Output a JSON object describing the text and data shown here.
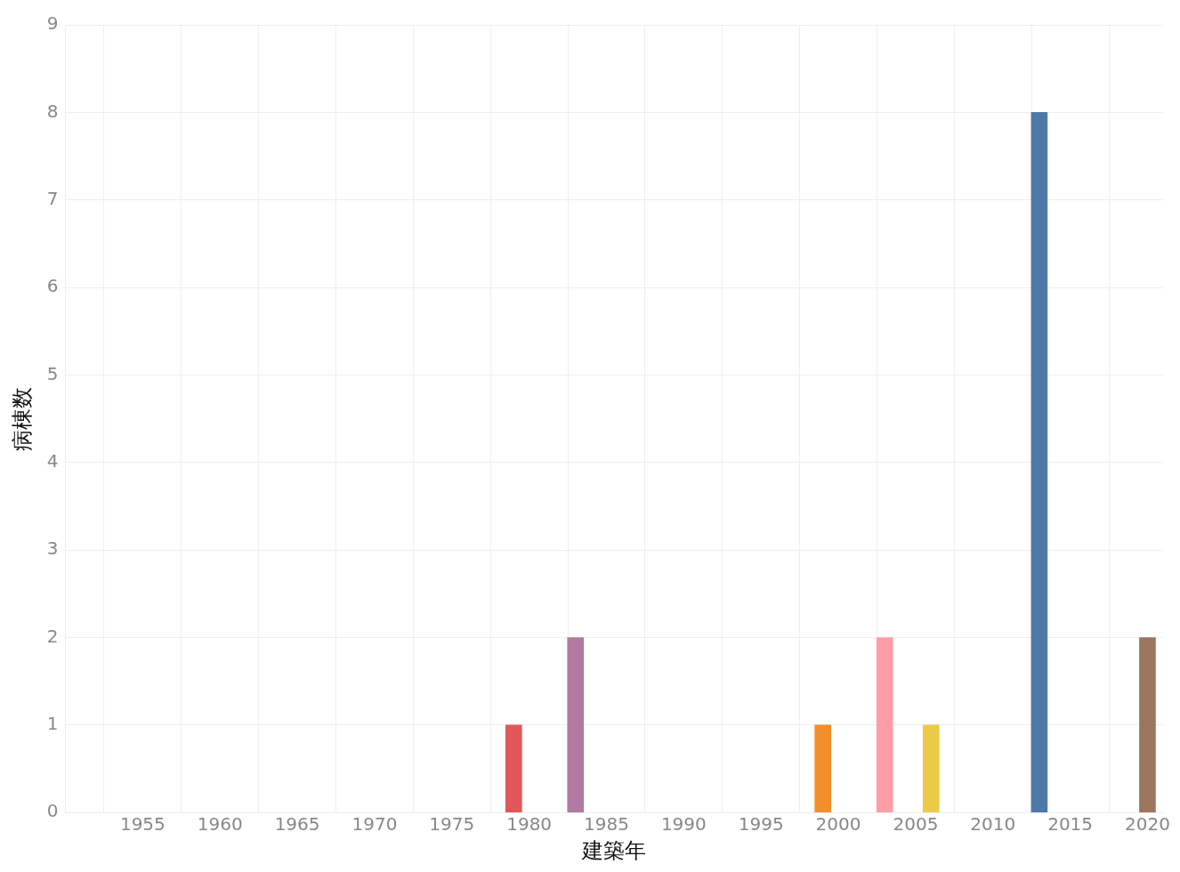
{
  "chart_data": {
    "type": "bar",
    "xlabel": "建築年",
    "ylabel": "病棟数",
    "x": [
      1979,
      1983,
      1999,
      2003,
      2006,
      2013,
      2020
    ],
    "values": [
      1,
      2,
      1,
      2,
      1,
      8,
      2
    ],
    "colors": [
      "#e15759",
      "#b07aa1",
      "#f28e2b",
      "#ff9da7",
      "#edc948",
      "#4e79a7",
      "#9c755f"
    ],
    "xlim": [
      1950,
      2021
    ],
    "xticks": [
      1955,
      1960,
      1965,
      1970,
      1975,
      1980,
      1985,
      1990,
      1995,
      2000,
      2005,
      2010,
      2015,
      2020
    ],
    "ylim": [
      0,
      9
    ],
    "yticks": [
      0,
      1,
      2,
      3,
      4,
      5,
      6,
      7,
      8,
      9
    ],
    "grid": true,
    "legend": false
  }
}
